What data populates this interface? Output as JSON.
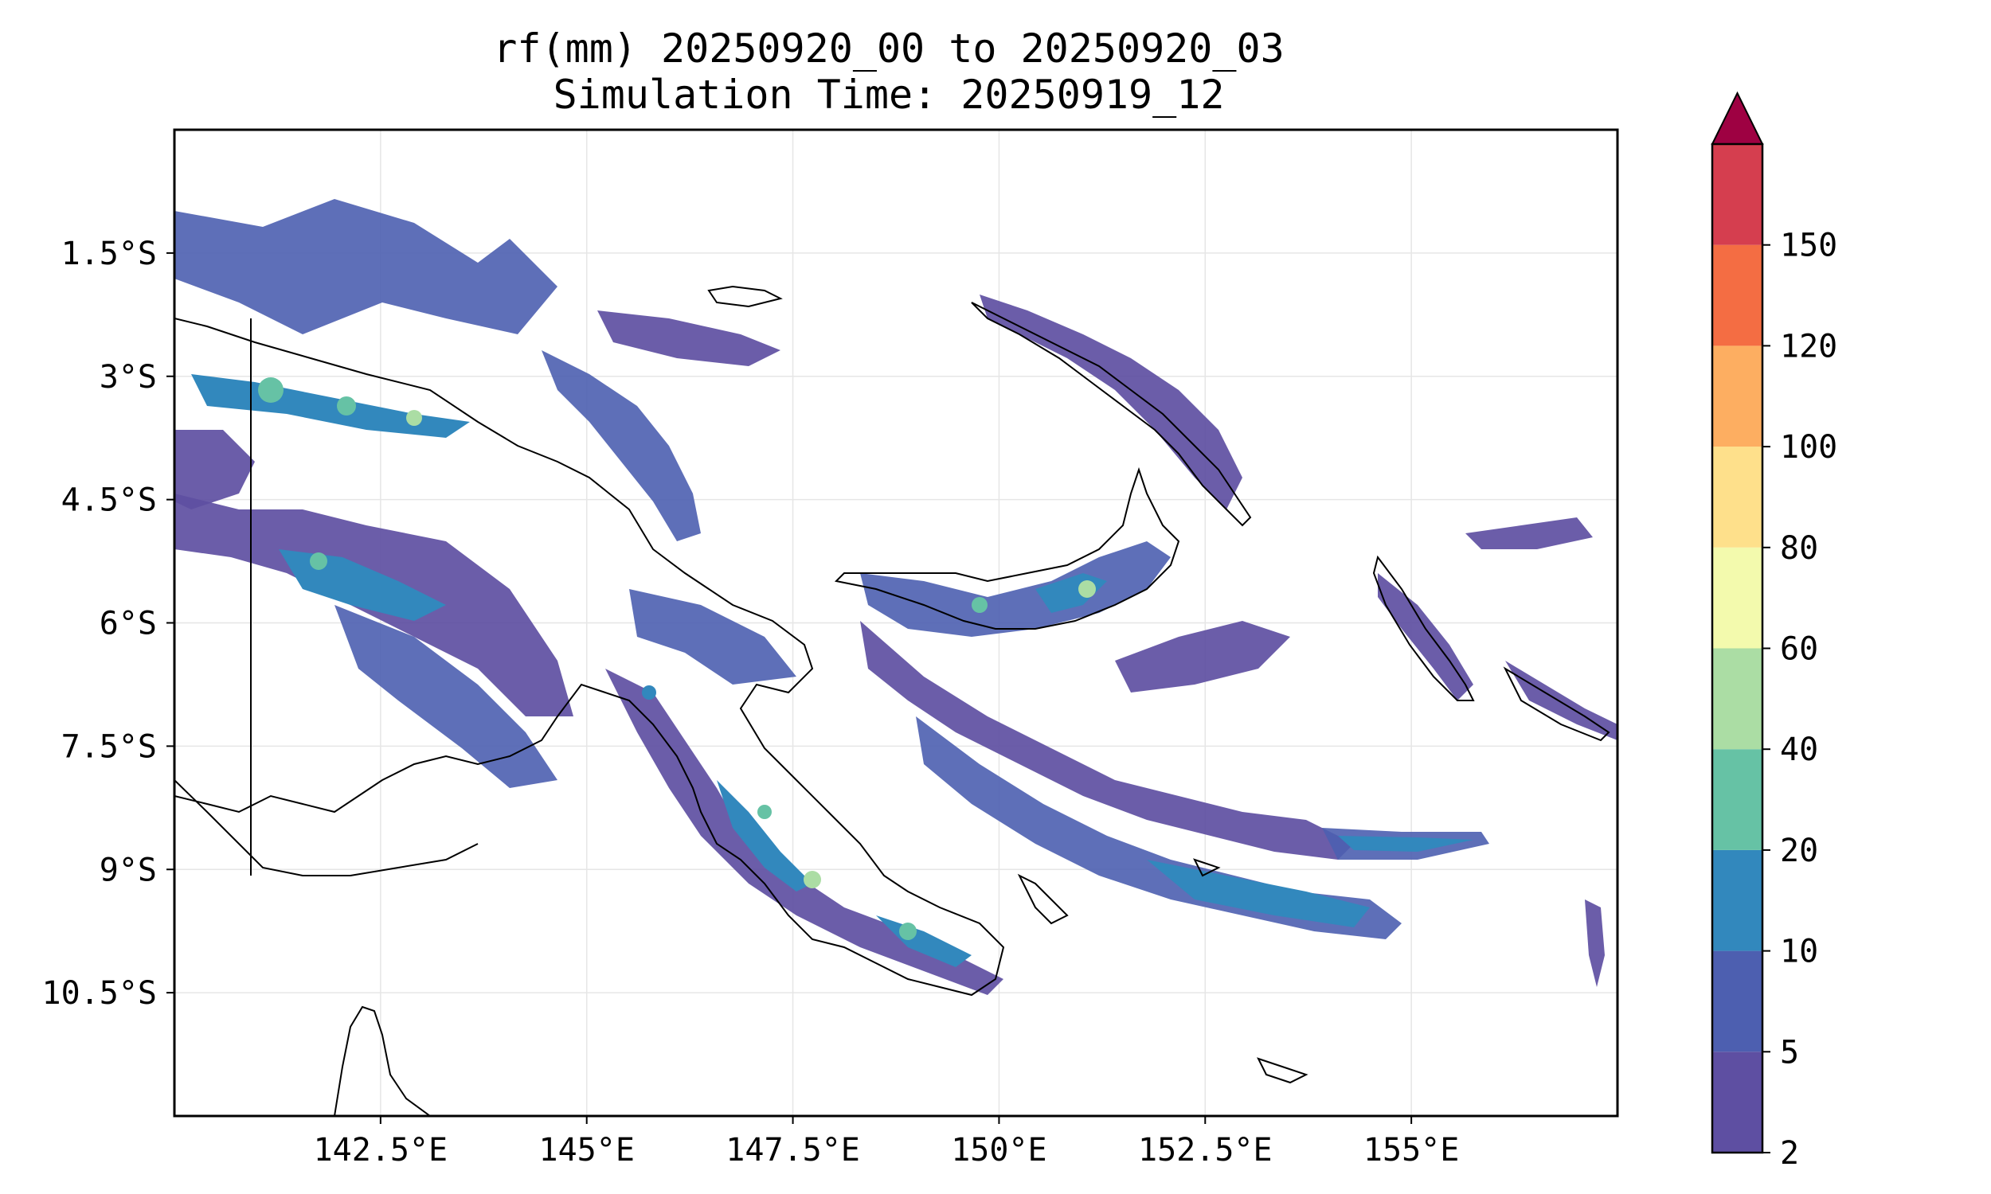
{
  "title": {
    "line1": "rf(mm) 20250920_00 to 20250920_03",
    "line2": "Simulation Time: 20250919_12"
  },
  "map": {
    "lon_range": [
      140.0,
      157.5
    ],
    "lat_range": [
      -12.0,
      0.0
    ],
    "x_ticks": [
      {
        "value": 142.5,
        "label": "142.5°E"
      },
      {
        "value": 145.0,
        "label": "145°E"
      },
      {
        "value": 147.5,
        "label": "147.5°E"
      },
      {
        "value": 150.0,
        "label": "150°E"
      },
      {
        "value": 152.5,
        "label": "152.5°E"
      },
      {
        "value": 155.0,
        "label": "155°E"
      }
    ],
    "y_ticks": [
      {
        "value": -1.5,
        "label": "1.5°S"
      },
      {
        "value": -3.0,
        "label": "3°S"
      },
      {
        "value": -4.5,
        "label": "4.5°S"
      },
      {
        "value": -6.0,
        "label": "6°S"
      },
      {
        "value": -7.5,
        "label": "7.5°S"
      },
      {
        "value": -9.0,
        "label": "9°S"
      },
      {
        "value": -10.5,
        "label": "10.5°S"
      }
    ],
    "grid": true
  },
  "colorbar": {
    "levels": [
      "2",
      "5",
      "10",
      "20",
      "40",
      "60",
      "80",
      "100",
      "120",
      "150"
    ],
    "colors": [
      "#5e4fa2",
      "#4d5fb0",
      "#3288bd",
      "#66c2a5",
      "#abdda4",
      "#f3faad",
      "#fee08b",
      "#fdae61",
      "#f46d43",
      "#d53e4f"
    ],
    "extend_color": "#9e0142"
  },
  "chart_data": {
    "type": "heatmap",
    "title": "rf(mm) 20250920_00 to 20250920_03",
    "subtitle": "Simulation Time: 20250919_12",
    "xlim": [
      140.0,
      157.5
    ],
    "ylim": [
      -12.0,
      0.0
    ],
    "rain_bands": [
      {
        "lon": [
          140.0,
          146.0
        ],
        "lat": [
          -2.0,
          -3.5
        ],
        "level": "5-10"
      },
      {
        "lon": [
          140.5,
          143.0
        ],
        "lat": [
          -3.0,
          -3.3
        ],
        "level": "20-40"
      },
      {
        "lon": [
          140.0,
          144.0
        ],
        "lat": [
          -5.0,
          -6.0
        ],
        "level": "10-20"
      },
      {
        "lon": [
          145.5,
          148.0
        ],
        "lat": [
          -6.3,
          -8.0
        ],
        "level": "5-20"
      },
      {
        "lon": [
          147.0,
          150.5
        ],
        "lat": [
          -8.0,
          -10.4
        ],
        "level": "10-40"
      },
      {
        "lon": [
          150.5,
          152.0
        ],
        "lat": [
          -5.2,
          -6.0
        ],
        "level": "10-40"
      },
      {
        "lon": [
          148.5,
          155.0
        ],
        "lat": [
          -6.5,
          -9.5
        ],
        "level": "5-20"
      },
      {
        "lon": [
          151.5,
          156.5
        ],
        "lat": [
          -8.2,
          -9.3
        ],
        "level": "10-20"
      },
      {
        "lon": [
          154.5,
          156.5
        ],
        "lat": [
          -5.5,
          -7.5
        ],
        "level": "5-20"
      },
      {
        "lon": [
          145.0,
          150.0
        ],
        "lat": [
          -1.8,
          -2.7
        ],
        "level": "5-10"
      }
    ]
  }
}
